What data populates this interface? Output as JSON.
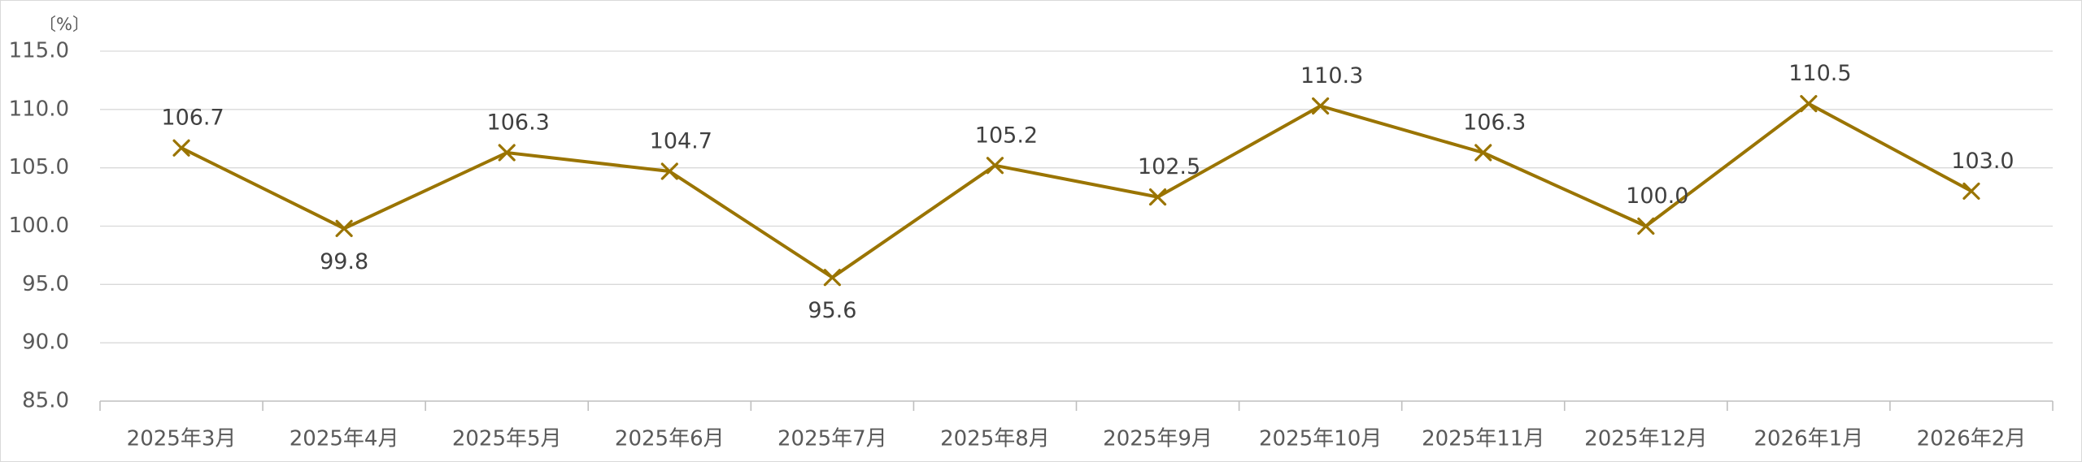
{
  "chart_data": {
    "type": "line",
    "categories": [
      "2025年3月",
      "2025年4月",
      "2025年5月",
      "2025年6月",
      "2025年7月",
      "2025年8月",
      "2025年9月",
      "2025年10月",
      "2025年11月",
      "2025年12月",
      "2026年1月",
      "2026年2月"
    ],
    "series": [
      {
        "values": [
          106.7,
          99.8,
          106.3,
          104.7,
          95.6,
          105.2,
          102.5,
          110.3,
          106.3,
          100.0,
          110.5,
          103.0
        ]
      }
    ],
    "ylabel": "〔%〕",
    "ylim": [
      85,
      115
    ],
    "yticks": [
      "115.0",
      "110.0",
      "105.0",
      "100.0",
      "95.0",
      "90.0",
      "85.0"
    ],
    "grid": true,
    "legend": "none",
    "marker": "x",
    "data_labels": true,
    "line_color": "#9a7400",
    "grid_color": "#d9d9d9",
    "text_color": "#595959"
  }
}
